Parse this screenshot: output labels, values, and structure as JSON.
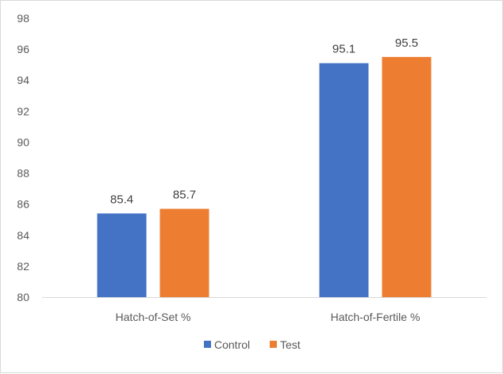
{
  "chart_data": {
    "type": "bar",
    "title": "",
    "xlabel": "",
    "ylabel": "",
    "ylim": [
      80,
      98
    ],
    "yticks": [
      80,
      82,
      84,
      86,
      88,
      90,
      92,
      94,
      96,
      98
    ],
    "grid": false,
    "legend_position": "bottom",
    "categories": [
      "Hatch-of-Set %",
      "Hatch-of-Fertile %"
    ],
    "series": [
      {
        "name": "Control",
        "values": [
          85.4,
          95.1
        ],
        "color": "#4472c4"
      },
      {
        "name": "Test",
        "values": [
          85.7,
          95.5
        ],
        "color": "#ed7d31"
      }
    ],
    "data_labels": true
  }
}
